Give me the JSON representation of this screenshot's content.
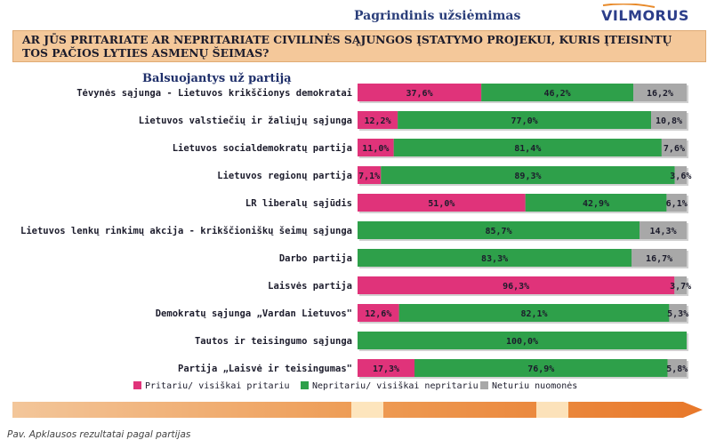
{
  "header": {
    "title": "Pagrindinis užsiėmimas",
    "brand": "VILMORUS"
  },
  "question": {
    "text": "AR JŪS PRITARIATE AR NEPRITARIATE CIVILINĖS SĄJUNGOS ĮSTATYMO PROJEKUI, KURIS ĮTEISINTŲ TOS PAČIOS LYTIES ASMENŲ ŠEIMAS?"
  },
  "caption": "Pav. Apklausos rezultatai pagal partijas",
  "colors": {
    "support": "#e0337a",
    "oppose": "#2ea04a",
    "no_opinion": "#a8a8a8"
  },
  "chart_data": {
    "type": "bar",
    "orientation": "horizontal",
    "stacked": true,
    "subtitle": "Balsuojantys už partiją",
    "categories": [
      "Tėvynės sąjunga - Lietuvos krikščionys demokratai",
      "Lietuvos valstiečių ir žaliųjų sąjunga",
      "Lietuvos socialdemokratų partija",
      "Lietuvos regionų partija",
      "LR liberalų sąjūdis",
      "Lietuvos lenkų rinkimų akcija - krikščioniškų šeimų sąjunga",
      "Darbo partija",
      "Laisvės partija",
      "Demokratų sąjunga „Vardan Lietuvos\"",
      "Tautos ir teisingumo sąjunga",
      "Partija „Laisvė ir teisingumas\""
    ],
    "series": [
      {
        "name": "Pritariu/ visiškai pritariu",
        "values": [
          37.6,
          12.2,
          11.0,
          7.1,
          51.0,
          0,
          0,
          96.3,
          12.6,
          0,
          17.3
        ]
      },
      {
        "name": "Nepritariu/ visiškai nepritariu",
        "values": [
          46.2,
          77.0,
          81.4,
          89.3,
          42.9,
          85.7,
          83.3,
          0,
          82.1,
          100.0,
          76.9
        ]
      },
      {
        "name": "Neturiu nuomonės",
        "values": [
          16.2,
          10.8,
          7.6,
          3.6,
          6.1,
          14.3,
          16.7,
          3.7,
          5.3,
          0,
          5.8
        ]
      }
    ],
    "data_labels": [
      [
        "37,6%",
        "46,2%",
        "16,2%"
      ],
      [
        "12,2%",
        "77,0%",
        "10,8%"
      ],
      [
        "11,0%",
        "81,4%",
        "7,6%"
      ],
      [
        "7,1%",
        "89,3%",
        "3,6%"
      ],
      [
        "51,0%",
        "42,9%",
        "6,1%"
      ],
      [
        "",
        "85,7%",
        "14,3%"
      ],
      [
        "",
        "83,3%",
        "16,7%"
      ],
      [
        "96,3%",
        "",
        "3,7%"
      ],
      [
        "12,6%",
        "82,1%",
        "5,3%"
      ],
      [
        "",
        "100,0%",
        ""
      ],
      [
        "17,3%",
        "76,9%",
        "5,8%"
      ]
    ],
    "xlim": [
      0,
      100
    ],
    "grid": false,
    "legend": "bottom"
  }
}
